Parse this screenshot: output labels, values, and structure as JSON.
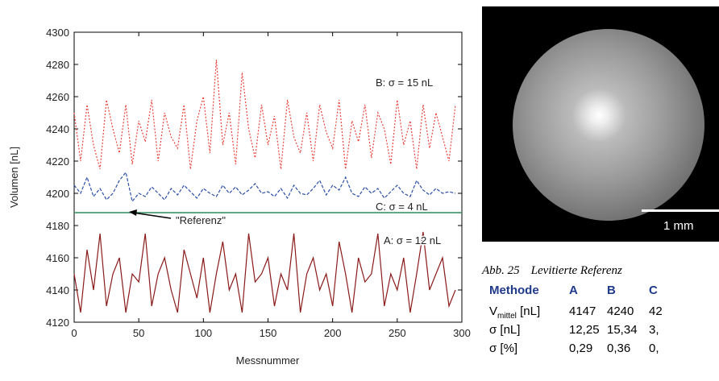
{
  "chart_data": {
    "type": "line",
    "xlabel": "Messnummer",
    "ylabel": "Volumen [nL]",
    "xlim": [
      0,
      300
    ],
    "ylim": [
      4120,
      4300
    ],
    "xticks": [
      0,
      50,
      100,
      150,
      200,
      250,
      300
    ],
    "yticks": [
      4120,
      4140,
      4160,
      4180,
      4200,
      4220,
      4240,
      4260,
      4280,
      4300
    ],
    "x": [
      0,
      5,
      10,
      15,
      20,
      25,
      30,
      35,
      40,
      45,
      50,
      55,
      60,
      65,
      70,
      75,
      80,
      85,
      90,
      95,
      100,
      105,
      110,
      115,
      120,
      125,
      130,
      135,
      140,
      145,
      150,
      155,
      160,
      165,
      170,
      175,
      180,
      185,
      190,
      195,
      200,
      205,
      210,
      215,
      220,
      225,
      230,
      235,
      240,
      245,
      250,
      255,
      260,
      265,
      270,
      275,
      280,
      285,
      290,
      295
    ],
    "series": [
      {
        "name": "B: σ = 15 nL",
        "color": "#e8423c",
        "dash": "2,2",
        "values": [
          4250,
          4220,
          4255,
          4230,
          4215,
          4258,
          4240,
          4225,
          4255,
          4218,
          4245,
          4232,
          4258,
          4220,
          4250,
          4235,
          4228,
          4255,
          4215,
          4245,
          4260,
          4225,
          4283,
          4230,
          4250,
          4218,
          4275,
          4240,
          4222,
          4255,
          4230,
          4248,
          4215,
          4258,
          4235,
          4225,
          4250,
          4220,
          4255,
          4238,
          4228,
          4258,
          4215,
          4245,
          4232,
          4255,
          4222,
          4250,
          4240,
          4218,
          4258,
          4230,
          4245,
          4215,
          4255,
          4228,
          4250,
          4235,
          4220,
          4255
        ]
      },
      {
        "name": "C: σ = 4 nL",
        "color": "#2c4fa8",
        "dash": "4,2",
        "values": [
          4205,
          4200,
          4210,
          4198,
          4203,
          4196,
          4200,
          4208,
          4213,
          4195,
          4200,
          4198,
          4204,
          4200,
          4196,
          4203,
          4199,
          4205,
          4201,
          4197,
          4203,
          4200,
          4198,
          4205,
          4200,
          4204,
          4199,
          4202,
          4206,
          4200,
          4201,
          4198,
          4203,
          4197,
          4205,
          4200,
          4199,
          4203,
          4208,
          4199,
          4205,
          4202,
          4210,
          4200,
          4198,
          4204,
          4200,
          4203,
          4197,
          4201,
          4205,
          4200,
          4198,
          4208,
          4202,
          4199,
          4203,
          4200,
          4201,
          4200
        ]
      },
      {
        "name": "A: σ = 12 nL",
        "color": "#8b1a1a",
        "dash": "",
        "values": [
          4150,
          4126,
          4165,
          4140,
          4175,
          4130,
          4150,
          4160,
          4126,
          4150,
          4145,
          4175,
          4130,
          4150,
          4160,
          4140,
          4126,
          4165,
          4150,
          4135,
          4160,
          4126,
          4150,
          4170,
          4140,
          4150,
          4126,
          4175,
          4145,
          4150,
          4160,
          4130,
          4150,
          4140,
          4175,
          4126,
          4150,
          4160,
          4140,
          4150,
          4130,
          4170,
          4150,
          4126,
          4160,
          4145,
          4150,
          4175,
          4130,
          4150,
          4140,
          4160,
          4126,
          4150,
          4176,
          4140,
          4150,
          4160,
          4130,
          4140
        ]
      }
    ],
    "reference": {
      "label": "\"Referenz\"",
      "value": 4188,
      "color": "#2e8b57"
    }
  },
  "image": {
    "scale_label": "1 mm"
  },
  "caption": {
    "number": "Abb. 25",
    "text": "Levitierte Referenz"
  },
  "table": {
    "header": [
      "Methode",
      "A",
      "B",
      "C"
    ],
    "rows": [
      {
        "label": "V",
        "label_sub": "mittel",
        "label_unit": " [nL]",
        "cells": [
          "4147",
          "4240",
          "42"
        ]
      },
      {
        "label": "σ [nL]",
        "cells": [
          "12,25",
          "15,34",
          "3,"
        ]
      },
      {
        "label": "σ [%]",
        "cells": [
          "0,29",
          "0,36",
          "0,"
        ]
      }
    ]
  }
}
